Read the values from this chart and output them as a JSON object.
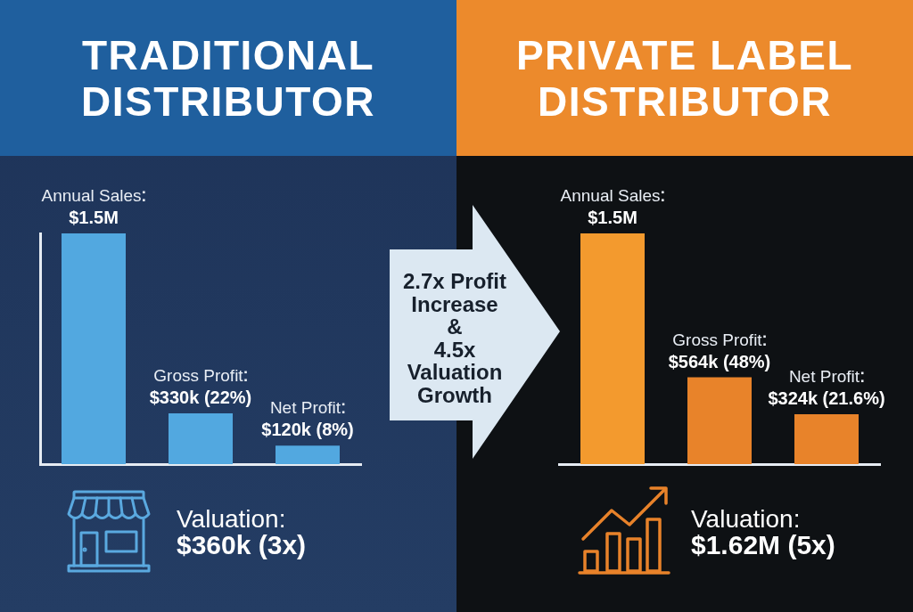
{
  "chart_data": [
    {
      "type": "bar",
      "title": "TRADITIONAL DISTRIBUTOR",
      "categories": [
        "Annual Sales",
        "Gross Profit",
        "Net Profit"
      ],
      "values": [
        1500000,
        330000,
        120000
      ],
      "color": "#52a8e0",
      "value_labels": [
        "$1.5M",
        "$330k (22%)",
        "$120k (8%)"
      ],
      "tick_labels": "x",
      "annotations": [
        "Valuation:",
        "$360k (3x)"
      ]
    },
    {
      "type": "other",
      "annotations": [
        "2.7x Profit Increase",
        "&",
        "4.5x Valuation Growth"
      ]
    },
    {
      "type": "bar",
      "title": "PRIVATE LABEL DISTRIBUTOR",
      "categories": [
        "Annual Sales",
        "Gross Profit",
        "Net Profit"
      ],
      "values": [
        1500000,
        564000,
        324000
      ],
      "colors": [
        "#f39a2e",
        "#e8832a",
        "#e8832a"
      ],
      "value_labels": [
        "$1.5M",
        "$564k (48%)",
        "$324k (21.6%)"
      ],
      "tick_labels": "x",
      "annotations": [
        "Valuation:",
        "$1.62M (5x)"
      ]
    }
  ]
}
